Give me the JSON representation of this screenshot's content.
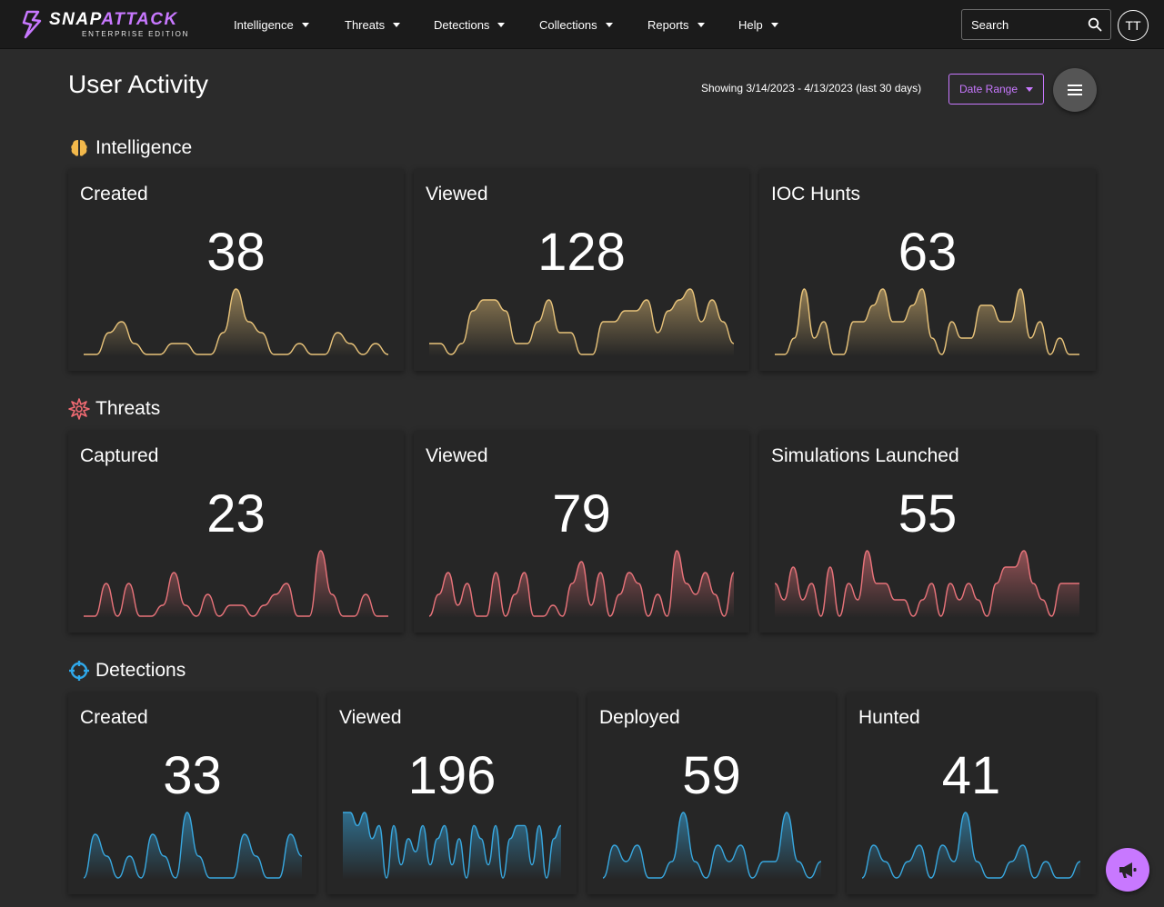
{
  "app": {
    "name_part1": "SNAP",
    "name_part2": "ATTACK",
    "edition": "ENTERPRISE EDITION"
  },
  "nav": {
    "items": [
      {
        "label": "Intelligence"
      },
      {
        "label": "Threats"
      },
      {
        "label": "Detections"
      },
      {
        "label": "Collections"
      },
      {
        "label": "Reports"
      },
      {
        "label": "Help"
      }
    ]
  },
  "search": {
    "placeholder": "Search"
  },
  "user": {
    "initials": "TT"
  },
  "header": {
    "title": "User Activity",
    "date_range_text": "Showing 3/14/2023 - 4/13/2023 (last 30 days)",
    "date_range_button": "Date Range"
  },
  "colors": {
    "accent": "#c878ff",
    "intelligence": "#e8c37a",
    "threats": "#e8737a",
    "detections": "#38a8e0"
  },
  "sections": {
    "intelligence": {
      "title": "Intelligence",
      "icon": "brain-icon",
      "cards": [
        {
          "label": "Created",
          "value": "38",
          "trend": [
            0,
            0,
            2,
            3,
            1,
            0,
            0,
            1,
            1,
            0,
            0,
            2,
            6,
            3,
            2,
            0,
            0,
            1,
            0,
            0,
            2,
            1,
            0,
            1,
            0
          ]
        },
        {
          "label": "Viewed",
          "value": "128",
          "trend": [
            1,
            1,
            0,
            1,
            4,
            5,
            5,
            4,
            1,
            1,
            3,
            5,
            2,
            2,
            0,
            0,
            3,
            3,
            4,
            4,
            5,
            2,
            4,
            5,
            6,
            3,
            5,
            3,
            1
          ]
        },
        {
          "label": "IOC Hunts",
          "value": "63",
          "trend": [
            0,
            0,
            1,
            4,
            1,
            2,
            0,
            0,
            2,
            2,
            3,
            4,
            2,
            2,
            3,
            4,
            1,
            0,
            2,
            1,
            1,
            3,
            3,
            2,
            2,
            4,
            1,
            2,
            0,
            1,
            0,
            0
          ]
        }
      ]
    },
    "threats": {
      "title": "Threats",
      "icon": "starburst-icon",
      "cards": [
        {
          "label": "Captured",
          "value": "23",
          "trend": [
            0,
            0,
            3,
            0,
            3,
            0,
            0,
            1,
            4,
            1,
            0,
            2,
            0,
            1,
            1,
            0,
            1,
            2,
            3,
            0,
            0,
            6,
            2,
            0,
            0,
            2,
            0,
            0
          ]
        },
        {
          "label": "Viewed",
          "value": "79",
          "trend": [
            0,
            2,
            4,
            1,
            3,
            0,
            0,
            4,
            0,
            2,
            4,
            0,
            0,
            1,
            0,
            3,
            5,
            1,
            4,
            0,
            2,
            4,
            3,
            0,
            2,
            0,
            6,
            3,
            2,
            4,
            2,
            0,
            4
          ]
        },
        {
          "label": "Simulations Launched",
          "value": "55",
          "trend": [
            2,
            1,
            3,
            1,
            2,
            0,
            3,
            0,
            2,
            1,
            4,
            2,
            2,
            1,
            1,
            0,
            1,
            2,
            0,
            2,
            1,
            2,
            1,
            0,
            2,
            3,
            3,
            4,
            2,
            1,
            0,
            2,
            2,
            2
          ]
        }
      ]
    },
    "detections": {
      "title": "Detections",
      "icon": "crosshair-icon",
      "cards": [
        {
          "label": "Created",
          "value": "33",
          "trend": [
            0,
            2,
            1,
            0,
            1,
            0,
            2,
            1,
            0,
            3,
            1,
            0,
            0,
            0,
            2,
            1,
            0,
            0,
            2,
            1
          ]
        },
        {
          "label": "Viewed",
          "value": "196",
          "trend": [
            5,
            5,
            4,
            5,
            3,
            4,
            0,
            4,
            1,
            3,
            2,
            4,
            1,
            3,
            4,
            1,
            3,
            0,
            4,
            3,
            1,
            4,
            0,
            3,
            4,
            4,
            1,
            4,
            0,
            3,
            4
          ]
        },
        {
          "label": "Deployed",
          "value": "59",
          "trend": [
            0,
            2,
            1,
            2,
            0,
            0,
            1,
            4,
            1,
            0,
            2,
            1,
            2,
            0,
            1,
            1,
            4,
            1,
            0,
            1
          ]
        },
        {
          "label": "Hunted",
          "value": "41",
          "trend": [
            0,
            2,
            1,
            0,
            1,
            2,
            0,
            2,
            1,
            4,
            1,
            0,
            0,
            1,
            2,
            0,
            1,
            0,
            0,
            1
          ]
        }
      ]
    }
  }
}
